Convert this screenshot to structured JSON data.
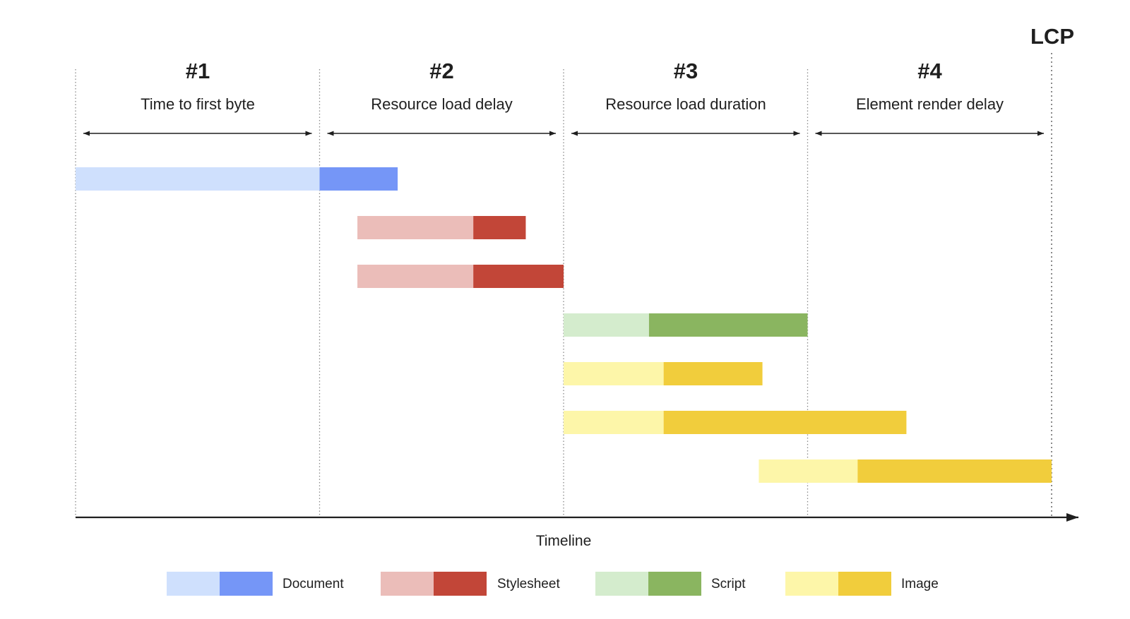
{
  "lcp_label": "LCP",
  "phases": [
    {
      "number": "#1",
      "name": "Time to first byte"
    },
    {
      "number": "#2",
      "name": "Resource load delay"
    },
    {
      "number": "#3",
      "name": "Resource load duration"
    },
    {
      "number": "#4",
      "name": "Element render delay"
    }
  ],
  "axis": {
    "label": "Timeline"
  },
  "colors": {
    "divider": "#8a8a8a",
    "arrow": "#1f1f1f",
    "document": [
      "#cfe0fd",
      "#7596f7"
    ],
    "stylesheet": [
      "#ebbdb9",
      "#c24638"
    ],
    "script": [
      "#d4eccd",
      "#8ab560"
    ],
    "image": [
      "#fdf6a9",
      "#f1cd3c"
    ]
  },
  "legend": [
    {
      "type": "document",
      "label": "Document"
    },
    {
      "type": "stylesheet",
      "label": "Stylesheet"
    },
    {
      "type": "script",
      "label": "Script"
    },
    {
      "type": "image",
      "label": "Image"
    }
  ],
  "timeline_scale": {
    "start": 0,
    "phase_bounds": [
      0,
      1,
      2,
      3,
      4
    ]
  },
  "resources": [
    {
      "type": "document",
      "start": 0.0,
      "split": 1.0,
      "end": 1.32
    },
    {
      "type": "stylesheet",
      "start": 1.155,
      "split": 1.63,
      "end": 1.845
    },
    {
      "type": "stylesheet",
      "start": 1.155,
      "split": 1.63,
      "end": 2.0
    },
    {
      "type": "script",
      "start": 2.0,
      "split": 2.35,
      "end": 3.0
    },
    {
      "type": "image",
      "start": 2.0,
      "split": 2.41,
      "end": 2.815
    },
    {
      "type": "image",
      "start": 2.0,
      "split": 2.41,
      "end": 3.405
    },
    {
      "type": "image",
      "start": 2.8,
      "split": 3.205,
      "end": 4.0
    }
  ]
}
